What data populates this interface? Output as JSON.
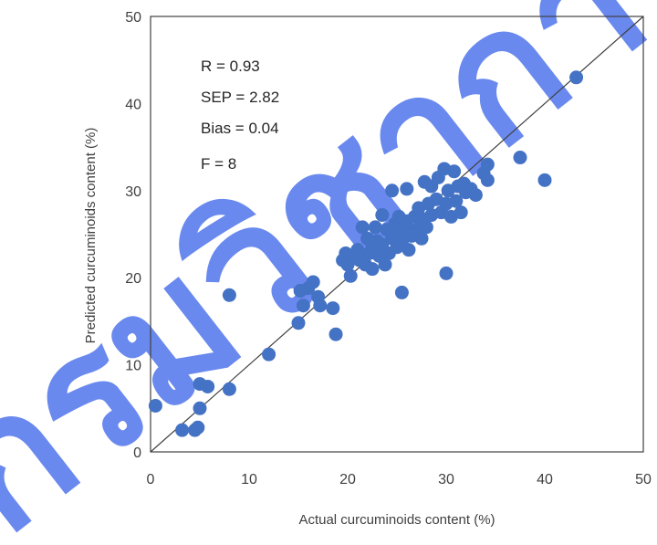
{
  "chart_data": {
    "type": "scatter",
    "xlabel": "Actual curcuminoids content (%)",
    "ylabel": "Predicted curcuminoids content (%)",
    "xlim": [
      0,
      50
    ],
    "ylim": [
      0,
      50
    ],
    "x_ticks": [
      "0",
      "10",
      "20",
      "30",
      "40",
      "50"
    ],
    "y_ticks": [
      "0",
      "10",
      "20",
      "30",
      "40",
      "50"
    ],
    "grid": false,
    "reference_line": "y = x",
    "stats": [
      "R = 0.93",
      "SEP = 2.82",
      "Bias = 0.04",
      "F = 8"
    ],
    "marker_color": "#4472c4",
    "line_color": "#404040",
    "series": [
      {
        "points": [
          [
            0.5,
            5.3
          ],
          [
            3.2,
            2.5
          ],
          [
            4.5,
            2.5
          ],
          [
            4.8,
            2.8
          ],
          [
            5.0,
            5.0
          ],
          [
            5.0,
            7.8
          ],
          [
            5.8,
            7.5
          ],
          [
            8.0,
            7.2
          ],
          [
            8.0,
            18.0
          ],
          [
            12.0,
            11.2
          ],
          [
            15.0,
            14.8
          ],
          [
            15.2,
            18.5
          ],
          [
            15.5,
            16.8
          ],
          [
            16.0,
            18.8
          ],
          [
            16.5,
            19.5
          ],
          [
            17.0,
            17.8
          ],
          [
            17.2,
            16.8
          ],
          [
            18.5,
            16.5
          ],
          [
            18.8,
            13.5
          ],
          [
            19.5,
            22.0
          ],
          [
            19.8,
            22.8
          ],
          [
            20.0,
            21.5
          ],
          [
            20.3,
            20.2
          ],
          [
            20.5,
            22.5
          ],
          [
            21.0,
            23.2
          ],
          [
            21.2,
            22.0
          ],
          [
            21.5,
            25.8
          ],
          [
            21.8,
            21.5
          ],
          [
            22.0,
            24.5
          ],
          [
            22.2,
            22.8
          ],
          [
            22.5,
            23.5
          ],
          [
            22.5,
            21.0
          ],
          [
            22.8,
            25.8
          ],
          [
            23.0,
            24.2
          ],
          [
            23.2,
            22.5
          ],
          [
            23.5,
            27.2
          ],
          [
            23.5,
            23.8
          ],
          [
            23.8,
            21.5
          ],
          [
            24.0,
            25.5
          ],
          [
            24.2,
            22.8
          ],
          [
            24.5,
            24.5
          ],
          [
            24.5,
            30.0
          ],
          [
            24.8,
            26.2
          ],
          [
            25.0,
            23.5
          ],
          [
            25.0,
            25.0
          ],
          [
            25.2,
            27.0
          ],
          [
            25.5,
            24.0
          ],
          [
            25.5,
            18.3
          ],
          [
            25.8,
            25.5
          ],
          [
            26.0,
            30.2
          ],
          [
            26.0,
            26.5
          ],
          [
            26.2,
            23.2
          ],
          [
            26.5,
            24.8
          ],
          [
            26.8,
            27.0
          ],
          [
            27.0,
            25.5
          ],
          [
            27.2,
            28.0
          ],
          [
            27.5,
            24.5
          ],
          [
            27.5,
            26.8
          ],
          [
            27.8,
            31.0
          ],
          [
            28.0,
            25.8
          ],
          [
            28.2,
            28.5
          ],
          [
            28.5,
            27.2
          ],
          [
            28.5,
            30.5
          ],
          [
            29.0,
            29.0
          ],
          [
            29.2,
            31.5
          ],
          [
            29.5,
            27.5
          ],
          [
            29.8,
            32.5
          ],
          [
            30.0,
            28.5
          ],
          [
            30.0,
            20.5
          ],
          [
            30.2,
            30.0
          ],
          [
            30.5,
            27.0
          ],
          [
            30.8,
            32.2
          ],
          [
            31.0,
            28.8
          ],
          [
            31.2,
            30.5
          ],
          [
            31.5,
            27.5
          ],
          [
            31.8,
            30.8
          ],
          [
            32.0,
            29.8
          ],
          [
            32.5,
            30.2
          ],
          [
            33.0,
            29.5
          ],
          [
            33.8,
            32.0
          ],
          [
            34.2,
            33.0
          ],
          [
            34.2,
            31.2
          ],
          [
            37.5,
            33.8
          ],
          [
            40.0,
            31.2
          ],
          [
            43.2,
            43.0
          ]
        ]
      }
    ]
  }
}
